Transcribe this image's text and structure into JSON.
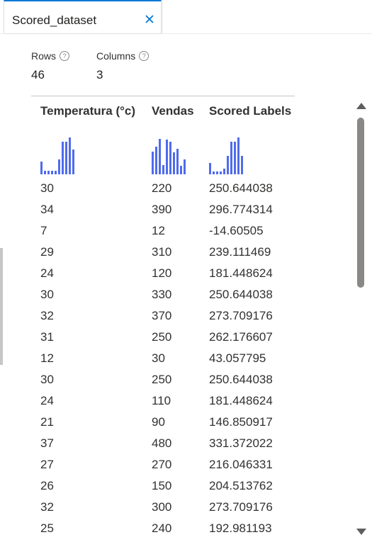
{
  "tab": {
    "title": "Scored_dataset",
    "close_glyph": "×"
  },
  "summary": {
    "rows_label": "Rows",
    "rows_value": "46",
    "columns_label": "Columns",
    "columns_value": "3",
    "info_glyph": "?"
  },
  "columns": [
    {
      "header": "Temperatura (°c)",
      "histogram": [
        0.35,
        0.1,
        0.1,
        0.1,
        0.1,
        0.4,
        0.88,
        0.88,
        1.0,
        0.68
      ]
    },
    {
      "header": "Vendas",
      "histogram": [
        0.62,
        0.75,
        0.97,
        0.25,
        0.95,
        0.88,
        0.6,
        0.7,
        0.23,
        0.4
      ]
    },
    {
      "header": "Scored Labels",
      "histogram": [
        0.3,
        0.08,
        0.08,
        0.08,
        0.15,
        0.5,
        0.88,
        0.88,
        1.0,
        0.5
      ]
    }
  ],
  "rows": [
    [
      "30",
      "220",
      "250.644038"
    ],
    [
      "34",
      "390",
      "296.774314"
    ],
    [
      "7",
      "12",
      "-14.60505"
    ],
    [
      "29",
      "310",
      "239.111469"
    ],
    [
      "24",
      "120",
      "181.448624"
    ],
    [
      "30",
      "330",
      "250.644038"
    ],
    [
      "32",
      "370",
      "273.709176"
    ],
    [
      "31",
      "250",
      "262.176607"
    ],
    [
      "12",
      "30",
      "43.057795"
    ],
    [
      "30",
      "250",
      "250.644038"
    ],
    [
      "24",
      "110",
      "181.448624"
    ],
    [
      "21",
      "90",
      "146.850917"
    ],
    [
      "37",
      "480",
      "331.372022"
    ],
    [
      "27",
      "270",
      "216.046331"
    ],
    [
      "26",
      "150",
      "204.513762"
    ],
    [
      "32",
      "300",
      "273.709176"
    ],
    [
      "25",
      "240",
      "192.981193"
    ]
  ],
  "colors": {
    "accent": "#0078d4",
    "histogram": "#4f6bed",
    "scrollbar": "#8a8886"
  }
}
